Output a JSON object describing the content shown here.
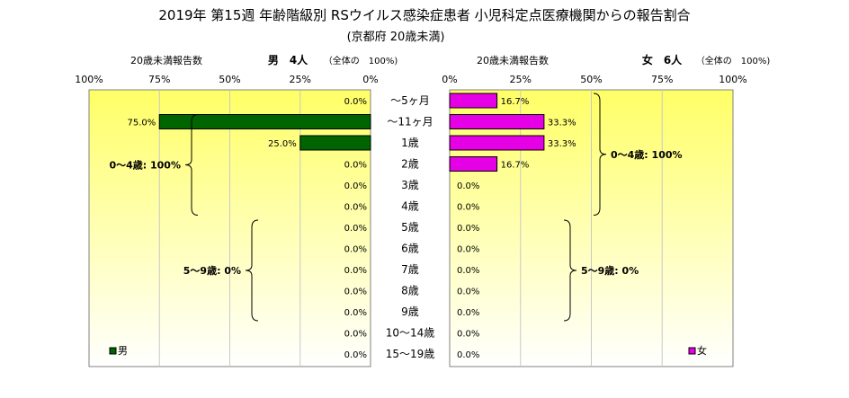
{
  "title": "2019年 第15週 年齢階級別 RSウイルス感染症患者 小児科定点医療機関からの報告割合",
  "subtitle": "(京都府 20歳未満)",
  "colors": {
    "male": "#006400",
    "female": "#e600e6",
    "bar_stroke": "#000000",
    "panel_top": "#ffff66",
    "panel_bottom": "#ffffff"
  },
  "chart_data": {
    "type": "bar",
    "orientation": "horizontal-butterfly",
    "categories": [
      "~5ヶ月",
      "~11ヶ月",
      "1歳",
      "2歳",
      "3歳",
      "4歳",
      "5歳",
      "6歳",
      "7歳",
      "8歳",
      "9歳",
      "10~14歳",
      "15~19歳"
    ],
    "categories_display": [
      "～5ヶ月",
      "～11ヶ月",
      "1歳",
      "2歳",
      "3歳",
      "4歳",
      "5歳",
      "6歳",
      "7歳",
      "8歳",
      "9歳",
      "10～14歳",
      "15～19歳"
    ],
    "xlim": [
      0,
      100
    ],
    "grid": true,
    "series": [
      {
        "side": "left",
        "name": "男",
        "header": "男　4人",
        "header_note": "（全体の　100%)",
        "axis_caption": "20歳未満報告数",
        "values": [
          0,
          75,
          25,
          0,
          0,
          0,
          0,
          0,
          0,
          0,
          0,
          0,
          0
        ],
        "labels": [
          "0.0%",
          "75.0%",
          "25.0%",
          "0.0%",
          "0.0%",
          "0.0%",
          "0.0%",
          "0.0%",
          "0.0%",
          "0.0%",
          "0.0%",
          "0.0%",
          "0.0%"
        ],
        "ticks": [
          "100%",
          "75%",
          "50%",
          "25%",
          "0%"
        ],
        "braces": [
          {
            "text": "0～4歳: 100%",
            "from": 1,
            "to": 5
          },
          {
            "text": "5～9歳: 0%",
            "from": 6,
            "to": 10
          }
        ]
      },
      {
        "side": "right",
        "name": "女",
        "header": "女　6人",
        "header_note": "（全体の　100%)",
        "axis_caption": "20歳未満報告数",
        "values": [
          16.7,
          33.3,
          33.3,
          16.7,
          0,
          0,
          0,
          0,
          0,
          0,
          0,
          0,
          0
        ],
        "labels": [
          "16.7%",
          "33.3%",
          "33.3%",
          "16.7%",
          "0.0%",
          "0.0%",
          "0.0%",
          "0.0%",
          "0.0%",
          "0.0%",
          "0.0%",
          "0.0%",
          "0.0%"
        ],
        "ticks": [
          "0%",
          "25%",
          "50%",
          "75%",
          "100%"
        ],
        "braces": [
          {
            "text": "0～4歳: 100%",
            "from": 0,
            "to": 5
          },
          {
            "text": "5～9歳: 0%",
            "from": 6,
            "to": 10
          }
        ]
      }
    ]
  }
}
